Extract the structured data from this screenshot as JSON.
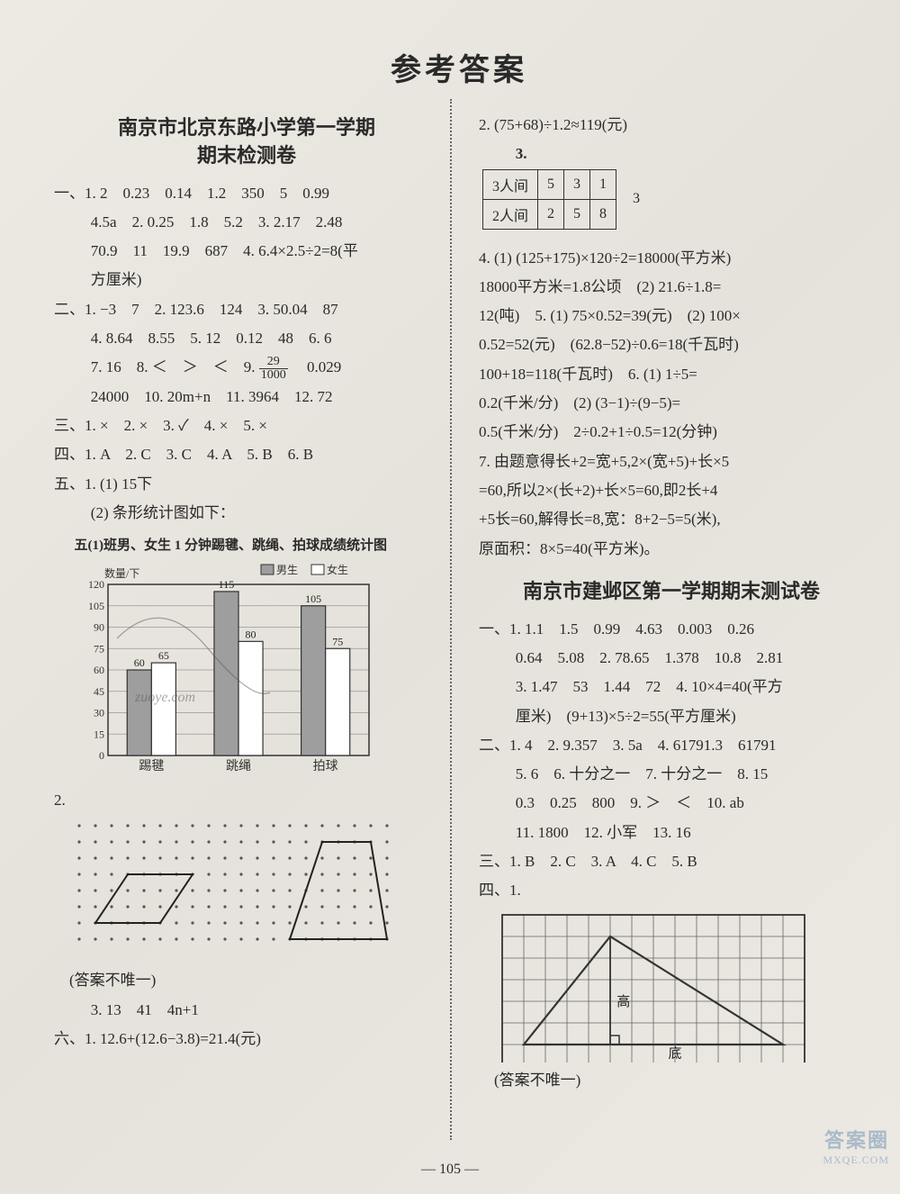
{
  "main_title": "参考答案",
  "page_number": "— 105 —",
  "watermark": {
    "main": "答案圈",
    "sub": "MXQE.COM"
  },
  "left": {
    "title_l1": "南京市北京东路小学第一学期",
    "title_l2": "期末检测卷",
    "q1_line1": "一、1. 2　0.23　0.14　1.2　350　5　0.99",
    "q1_line2": "4.5a　2. 0.25　1.8　5.2　3. 2.17　2.48",
    "q1_line3": "70.9　11　19.9　687　4. 6.4×2.5÷2=8(平",
    "q1_line4": "方厘米)",
    "q2_line1": "二、1. −3　7　2. 123.6　124　3. 50.04　87",
    "q2_line2": "4. 8.64　8.55　5. 12　0.12　48　6. 6",
    "q2_line3a": "7. 16　8. ＜　＞　＜　9. ",
    "q2_frac": {
      "n": "29",
      "d": "1000"
    },
    "q2_line3b": "　0.029",
    "q2_line4": "24000　10. 20m+n　11. 3964　12. 72",
    "q3": "三、1. ×　2. ×　3. ✓　4. ×　5. ×",
    "q4": "四、1. A　2. C　3. C　4. A　5. B　6. B",
    "q5_1": "五、1. (1) 15下",
    "q5_2": "(2) 条形统计图如下：",
    "chart_title": "五(1)班男、女生 1 分钟踢毽、跳绳、拍球成绩统计图",
    "chart": {
      "type": "bar",
      "y_label": "数量/下",
      "y_max": 120,
      "y_step": 15,
      "categories": [
        "踢毽",
        "跳绳",
        "拍球"
      ],
      "series": [
        {
          "name": "男生",
          "color": "#9e9e9e",
          "values": [
            60,
            115,
            105
          ]
        },
        {
          "name": "女生",
          "color": "#ffffff",
          "values": [
            65,
            80,
            75
          ]
        }
      ],
      "legend_labels": [
        "男生",
        "女生"
      ],
      "border_color": "#333",
      "grid_color": "#999",
      "overlay_text": "zuoye.com"
    },
    "q5_2_label": "2.",
    "shapes": {
      "dot_color": "#555",
      "dot_r": 1.6,
      "grid_cols": 20,
      "grid_rows": 8,
      "shape1_pts": [
        [
          1,
          6
        ],
        [
          5,
          6
        ],
        [
          7,
          3
        ],
        [
          3,
          3
        ]
      ],
      "shape2_pts": [
        [
          13,
          7
        ],
        [
          19,
          7
        ],
        [
          18,
          1
        ],
        [
          15,
          1
        ]
      ],
      "stroke": "#222",
      "stroke_w": 2
    },
    "note_unique": "(答案不唯一)",
    "q5_3": "3. 13　41　4n+1",
    "q6_1": "六、1. 12.6+(12.6−3.8)=21.4(元)"
  },
  "right": {
    "r2": "2. (75+68)÷1.2≈119(元)",
    "r3_label": "3.",
    "r3_after": "3",
    "r3_table": {
      "rows": [
        [
          "3人间",
          "5",
          "3",
          "1"
        ],
        [
          "2人间",
          "2",
          "5",
          "8"
        ]
      ]
    },
    "r4_1": "4. (1) (125+175)×120÷2=18000(平方米)",
    "r4_2": "18000平方米=1.8公顷　(2) 21.6÷1.8=",
    "r4_3": "12(吨)　5. (1) 75×0.52=39(元)　(2) 100×",
    "r4_4": "0.52=52(元)　(62.8−52)÷0.6=18(千瓦时)",
    "r4_5": "100+18=118(千瓦时)　6. (1) 1÷5=",
    "r4_6": "0.2(千米/分)　(2) (3−1)÷(9−5)=",
    "r4_7": "0.5(千米/分)　2÷0.2+1÷0.5=12(分钟)",
    "r4_8": "7. 由题意得长+2=宽+5,2×(宽+5)+长×5",
    "r4_9": "=60,所以2×(长+2)+长×5=60,即2长+4",
    "r4_10": "+5长=60,解得长=8,宽：8+2−5=5(米),",
    "r4_11": "原面积：8×5=40(平方米)。",
    "sec2_title": "南京市建邺区第一学期期末测试卷",
    "s2_1_1": "一、1. 1.1　1.5　0.99　4.63　0.003　0.26",
    "s2_1_2": "0.64　5.08　2. 78.65　1.378　10.8　2.81",
    "s2_1_3": "3. 1.47　53　1.44　72　4. 10×4=40(平方",
    "s2_1_4": "厘米)　(9+13)×5÷2=55(平方厘米)",
    "s2_2_1": "二、1. 4　2. 9.357　3. 5a　4. 61791.3　61791",
    "s2_2_2": "5. 6　6. 十分之一　7. 十分之一　8. 15",
    "s2_2_3": "0.3　0.25　800　9. ＞　＜　10. ab",
    "s2_2_4": "11. 1800　12. 小军　13. 16",
    "s2_3": "三、1. B　2. C　3. A　4. C　5. B",
    "s2_4": "四、1.",
    "grid_fig": {
      "cols": 14,
      "rows": 7,
      "cell": 24,
      "stroke": "#333",
      "tri_pts": [
        [
          1,
          6
        ],
        [
          5,
          1
        ],
        [
          13,
          6
        ]
      ],
      "alt_line": [
        [
          5,
          1
        ],
        [
          5,
          6
        ]
      ],
      "label_h": "高",
      "label_b": "底",
      "label_h_pos": [
        5.3,
        4.2
      ],
      "label_b_pos": [
        8,
        6.6
      ]
    },
    "note_unique": "(答案不唯一)"
  }
}
